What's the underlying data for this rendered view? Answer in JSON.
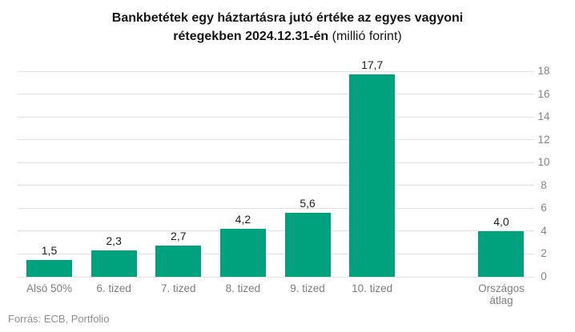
{
  "title": {
    "line1": "Bankbetétek egy háztartásra jutó értéke az egyes vagyoni",
    "line2_bold": "rétegekben 2024.12.31-én",
    "line2_normal": "(millió forint)"
  },
  "source": "Forrás: ECB, Portfolio",
  "chart_data": {
    "type": "bar",
    "title": "Bankbetétek egy háztartásra jutó értéke az egyes vagyoni rétegekben 2024.12.31-én (millió forint)",
    "categories": [
      "Alsó 50%",
      "6. tized",
      "7. tized",
      "8. tized",
      "9. tized",
      "10. tized",
      "Országos átlag"
    ],
    "values": [
      1.5,
      2.3,
      2.7,
      4.2,
      5.6,
      17.7,
      4.0
    ],
    "value_labels": [
      "1,5",
      "2,3",
      "2,7",
      "4,2",
      "5,6",
      "17,7",
      "4,0"
    ],
    "slots": [
      0,
      1,
      2,
      3,
      4,
      5,
      7
    ],
    "gap_before_last": true,
    "ylim": [
      0,
      18
    ],
    "yticks": [
      0,
      2,
      4,
      6,
      8,
      10,
      12,
      14,
      16,
      18
    ],
    "yaxis_side": "right",
    "grid": true,
    "legend": "none",
    "xlabel": "",
    "ylabel": "",
    "bar_color": "#00a17d",
    "grid_color": "#e0e0e0",
    "tick_label_color": "#848484",
    "value_label_color": "#1f1f1f"
  }
}
